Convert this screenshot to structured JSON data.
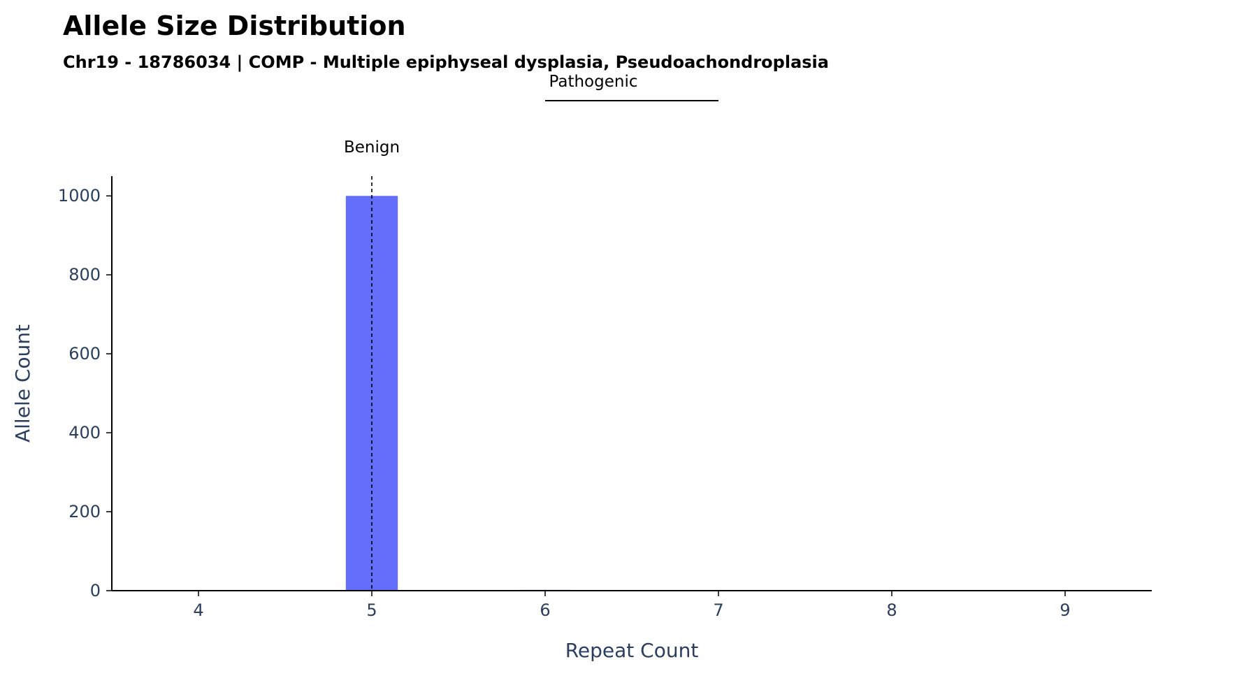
{
  "chart_data": {
    "type": "bar",
    "title": "Allele Size Distribution",
    "subtitle": "Chr19 - 18786034 | COMP - Multiple epiphyseal dysplasia, Pseudoachondroplasia",
    "xlabel": "Repeat Count",
    "ylabel": "Allele Count",
    "x": [
      4,
      5,
      6,
      7,
      8,
      9
    ],
    "values": [
      1,
      1000,
      2,
      1,
      0,
      0
    ],
    "xlim": [
      3.5,
      9.5
    ],
    "ylim": [
      0,
      1050
    ],
    "xticks": [
      4,
      5,
      6,
      7,
      8,
      9
    ],
    "yticks": [
      0,
      200,
      400,
      600,
      800,
      1000
    ],
    "grid": false,
    "bar_color": "#636efa",
    "axis_text_color": "#2a3f5f",
    "annotations": {
      "benign": {
        "label": "Benign",
        "x": 5,
        "line_style": "dashed"
      },
      "pathogenic": {
        "label": "Pathogenic",
        "x_start": 6,
        "x_end": 7
      }
    }
  }
}
